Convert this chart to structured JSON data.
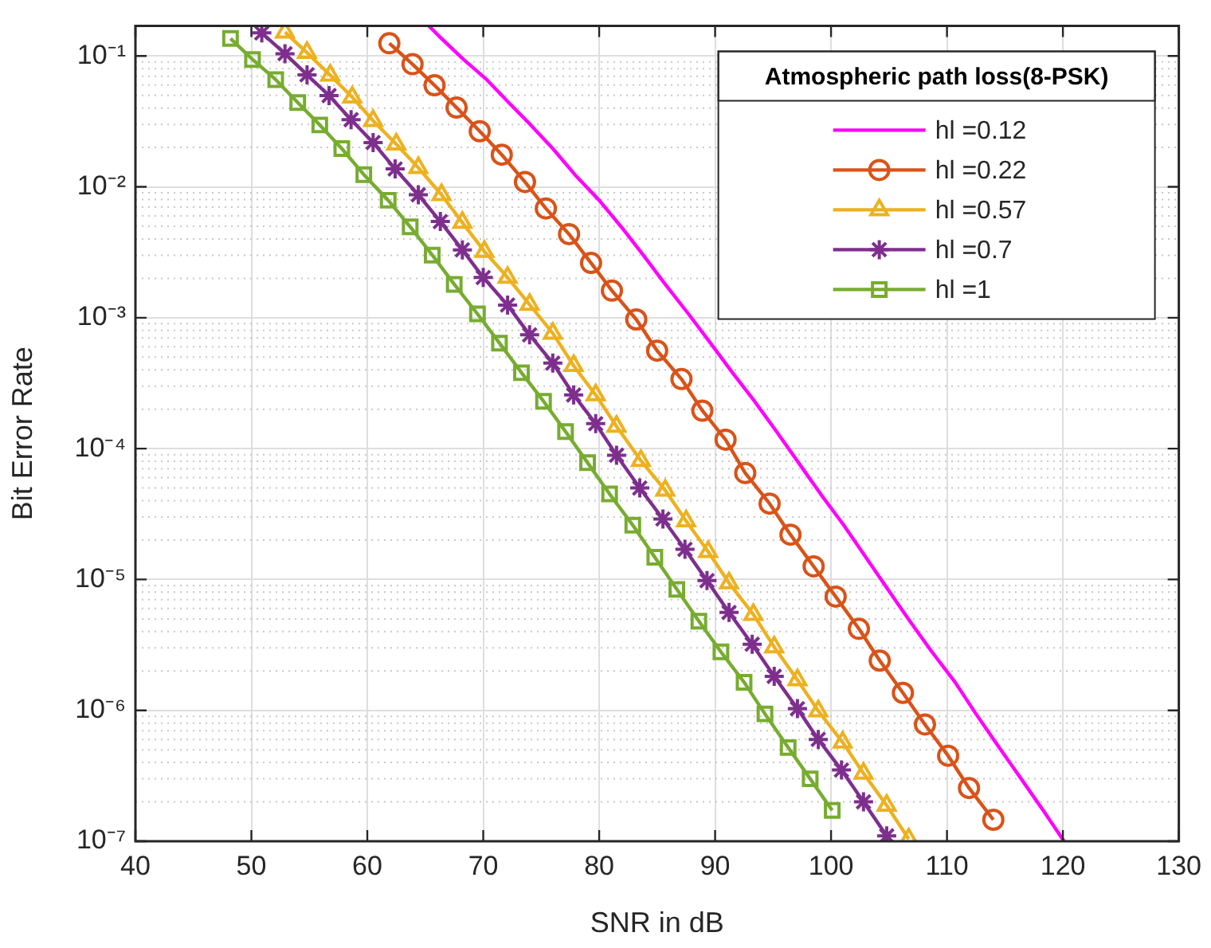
{
  "chart_data": {
    "type": "line",
    "xlabel": "SNR in dB",
    "ylabel": "Bit Error Rate",
    "legend_title": "Atmospheric path loss(8-PSK)",
    "legend": "top right",
    "grid": true,
    "log": "y",
    "xlim": [
      40,
      130
    ],
    "xticks": [
      40,
      50,
      60,
      70,
      80,
      90,
      100,
      110,
      120,
      130
    ],
    "ylim": [
      1e-07,
      0.17
    ],
    "yticks": [
      {
        "value": 1e-07,
        "label": "10⁻⁷"
      },
      {
        "value": 1e-06,
        "label": "10⁻⁶"
      },
      {
        "value": 1e-05,
        "label": "10⁻⁵"
      },
      {
        "value": 0.0001,
        "label": "10⁻⁴"
      },
      {
        "value": 0.001,
        "label": "10⁻³"
      },
      {
        "value": 0.01,
        "label": "10⁻²"
      },
      {
        "value": 0.1,
        "label": "10⁻¹"
      }
    ],
    "series": [
      {
        "name": "hl =0.12",
        "color": "#ff00ff",
        "marker": "none",
        "x": [
          65.3,
          66.4,
          68.3,
          70.3,
          72.2,
          74.1,
          76.0,
          77.9,
          80.0,
          81.9,
          83.8,
          85.7,
          87.7,
          89.6,
          91.5,
          93.4,
          95.3,
          97.2,
          99.1,
          101.1,
          103.0,
          104.9,
          106.8,
          108.7,
          110.7,
          112.5,
          114.5,
          116.4,
          118.3,
          120.1
        ],
        "values": [
          0.17,
          0.136,
          0.094,
          0.066,
          0.044,
          0.0297,
          0.0196,
          0.0124,
          0.0079,
          0.00495,
          0.00301,
          0.0018,
          0.00107,
          0.00064,
          0.00038,
          0.00023,
          0.000135,
          7.8e-05,
          4.5e-05,
          2.6e-05,
          1.48e-05,
          8.4e-06,
          4.8e-06,
          2.8e-06,
          1.64e-06,
          9.4e-07,
          5.2e-07,
          3e-07,
          1.72e-07,
          1e-07
        ]
      },
      {
        "name": "hl =0.22",
        "color": "#d95319",
        "marker": "circle",
        "x": [
          61.9,
          63.9,
          65.8,
          67.7,
          69.7,
          71.6,
          73.6,
          75.4,
          77.4,
          79.3,
          81.1,
          83.2,
          85.0,
          87.1,
          88.9,
          90.9,
          92.6,
          94.7,
          96.5,
          98.5,
          100.4,
          102.4,
          104.2,
          106.2,
          108.1,
          110.1,
          111.9,
          114.0
        ],
        "values": [
          0.125,
          0.0865,
          0.0597,
          0.0403,
          0.0266,
          0.0176,
          0.0109,
          0.00684,
          0.00435,
          0.00262,
          0.00161,
          0.00097,
          0.00056,
          0.00034,
          0.000195,
          0.000117,
          6.5e-05,
          3.8e-05,
          2.2e-05,
          1.26e-05,
          7.4e-06,
          4.2e-06,
          2.4e-06,
          1.36e-06,
          7.8e-07,
          4.5e-07,
          2.55e-07,
          1.46e-07
        ]
      },
      {
        "name": "hl =0.57",
        "color": "#edb120",
        "marker": "triangle",
        "x": [
          52.9,
          54.8,
          56.8,
          58.7,
          60.5,
          62.5,
          64.4,
          66.4,
          68.2,
          70.1,
          72.1,
          74.0,
          76.0,
          77.8,
          79.7,
          81.5,
          83.6,
          85.7,
          87.5,
          89.4,
          91.2,
          93.3,
          95.1,
          97.1,
          98.9,
          101.0,
          102.8,
          104.8,
          106.7
        ],
        "values": [
          0.152,
          0.106,
          0.0713,
          0.0484,
          0.032,
          0.0212,
          0.014,
          0.0087,
          0.00534,
          0.00321,
          0.00203,
          0.00126,
          0.00076,
          0.00043,
          0.000257,
          0.000148,
          8.1e-05,
          4.8e-05,
          2.8e-05,
          1.63e-05,
          9.4e-06,
          5.4e-06,
          3.05e-06,
          1.71e-06,
          9.9e-07,
          5.7e-07,
          3.3e-07,
          1.88e-07,
          1.04e-07
        ]
      },
      {
        "name": "hl =0.7",
        "color": "#7e2f8e",
        "marker": "cross",
        "x": [
          50.9,
          52.9,
          54.8,
          56.7,
          58.6,
          60.5,
          62.4,
          64.4,
          66.3,
          68.2,
          70.0,
          72.1,
          74.0,
          76.0,
          77.8,
          79.7,
          81.5,
          83.5,
          85.5,
          87.4,
          89.3,
          91.2,
          93.2,
          95.1,
          97.1,
          98.9,
          100.9,
          102.8,
          104.8
        ],
        "values": [
          0.15,
          0.104,
          0.0718,
          0.0498,
          0.0326,
          0.0218,
          0.0137,
          0.0087,
          0.00543,
          0.0033,
          0.00203,
          0.00125,
          0.00074,
          0.00045,
          0.000257,
          0.000155,
          8.9e-05,
          5e-05,
          2.9e-05,
          1.7e-05,
          9.8e-06,
          5.6e-06,
          3.2e-06,
          1.82e-06,
          1.03e-06,
          6e-07,
          3.5e-07,
          2e-07,
          1.1e-07
        ]
      },
      {
        "name": "hl =1",
        "color": "#77ac30",
        "marker": "square",
        "x": [
          48.2,
          50.1,
          52.1,
          54.0,
          55.9,
          57.8,
          59.7,
          61.8,
          63.7,
          65.6,
          67.5,
          69.5,
          71.4,
          73.3,
          75.2,
          77.1,
          79.0,
          80.9,
          82.9,
          84.8,
          86.7,
          88.6,
          90.5,
          92.5,
          94.3,
          96.3,
          98.2,
          100.1
        ],
        "values": [
          0.136,
          0.094,
          0.066,
          0.044,
          0.0297,
          0.0196,
          0.0124,
          0.0079,
          0.00495,
          0.00301,
          0.0018,
          0.00107,
          0.00064,
          0.00038,
          0.00023,
          0.000135,
          7.8e-05,
          4.5e-05,
          2.6e-05,
          1.48e-05,
          8.4e-06,
          4.8e-06,
          2.8e-06,
          1.64e-06,
          9.4e-07,
          5.2e-07,
          3e-07,
          1.72e-07
        ]
      }
    ]
  }
}
